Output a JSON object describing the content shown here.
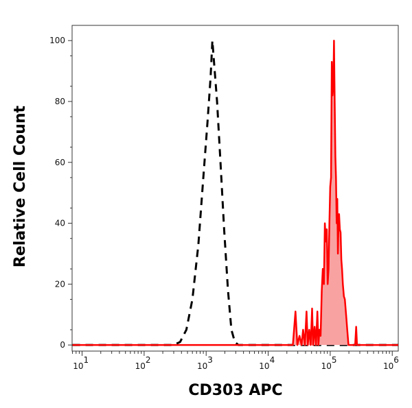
{
  "chart_data": {
    "type": "area",
    "xlabel": "CD303 APC",
    "ylabel": "Relative Cell Count",
    "x_scale": "log",
    "xlim": [
      6.9,
      1250000
    ],
    "ylim": [
      -2,
      105
    ],
    "y_ticks": [
      0,
      20,
      40,
      60,
      80,
      100
    ],
    "y_tick_labels": [
      "0",
      "20",
      "40",
      "60",
      "80",
      "100"
    ],
    "x_ticks": [
      10,
      100,
      1000,
      10000,
      100000,
      1000000
    ],
    "x_tick_labels": [
      {
        "base": "10",
        "exp": "1"
      },
      {
        "base": "10",
        "exp": "2"
      },
      {
        "base": "10",
        "exp": "3"
      },
      {
        "base": "10",
        "exp": "4"
      },
      {
        "base": "10",
        "exp": "5"
      },
      {
        "base": "10",
        "exp": "6"
      }
    ],
    "grid": false,
    "series": [
      {
        "style": "dashed",
        "color": "#000000",
        "fill": "none",
        "x": [
          7,
          300,
          380,
          480,
          600,
          750,
          900,
          1050,
          1180,
          1260,
          1350,
          1500,
          1700,
          1950,
          2250,
          2550,
          2900,
          3300,
          1250000
        ],
        "y": [
          0,
          0,
          1,
          5,
          15,
          33,
          55,
          73,
          88,
          100,
          92,
          80,
          60,
          38,
          18,
          5,
          1,
          0,
          0
        ]
      },
      {
        "style": "solid",
        "color": "#ff0000",
        "fill": "#f9a2a2",
        "x": [
          7,
          25000,
          27500,
          29500,
          32000,
          34500,
          36500,
          39000,
          41500,
          43500,
          46000,
          48500,
          51000,
          53000,
          56000,
          59000,
          62000,
          64500,
          67000,
          70000,
          73000,
          76000,
          79000,
          82000,
          85000,
          88000,
          91000,
          94000,
          97000,
          100000,
          103000,
          106000,
          109000,
          112000,
          115000,
          118000,
          121000,
          124000,
          127000,
          130000,
          133000,
          136000,
          139000,
          143000,
          147000,
          151000,
          155000,
          160000,
          166000,
          172000,
          180000,
          188000,
          197000,
          206000,
          216000,
          226000,
          238000,
          252000,
          262000,
          270000,
          280000,
          1250000
        ],
        "y": [
          0,
          0,
          11,
          0,
          3,
          0,
          5,
          0,
          11,
          0,
          5,
          0,
          12,
          0,
          6,
          0,
          11,
          0,
          5,
          3,
          18,
          25,
          20,
          40,
          34,
          38,
          20,
          25,
          40,
          52,
          55,
          93,
          82,
          85,
          100,
          80,
          62,
          55,
          40,
          48,
          30,
          40,
          43,
          38,
          37,
          28,
          25,
          20,
          16,
          15,
          10,
          5,
          0,
          0,
          0,
          0,
          0,
          0,
          6,
          0,
          0,
          0
        ]
      }
    ]
  }
}
